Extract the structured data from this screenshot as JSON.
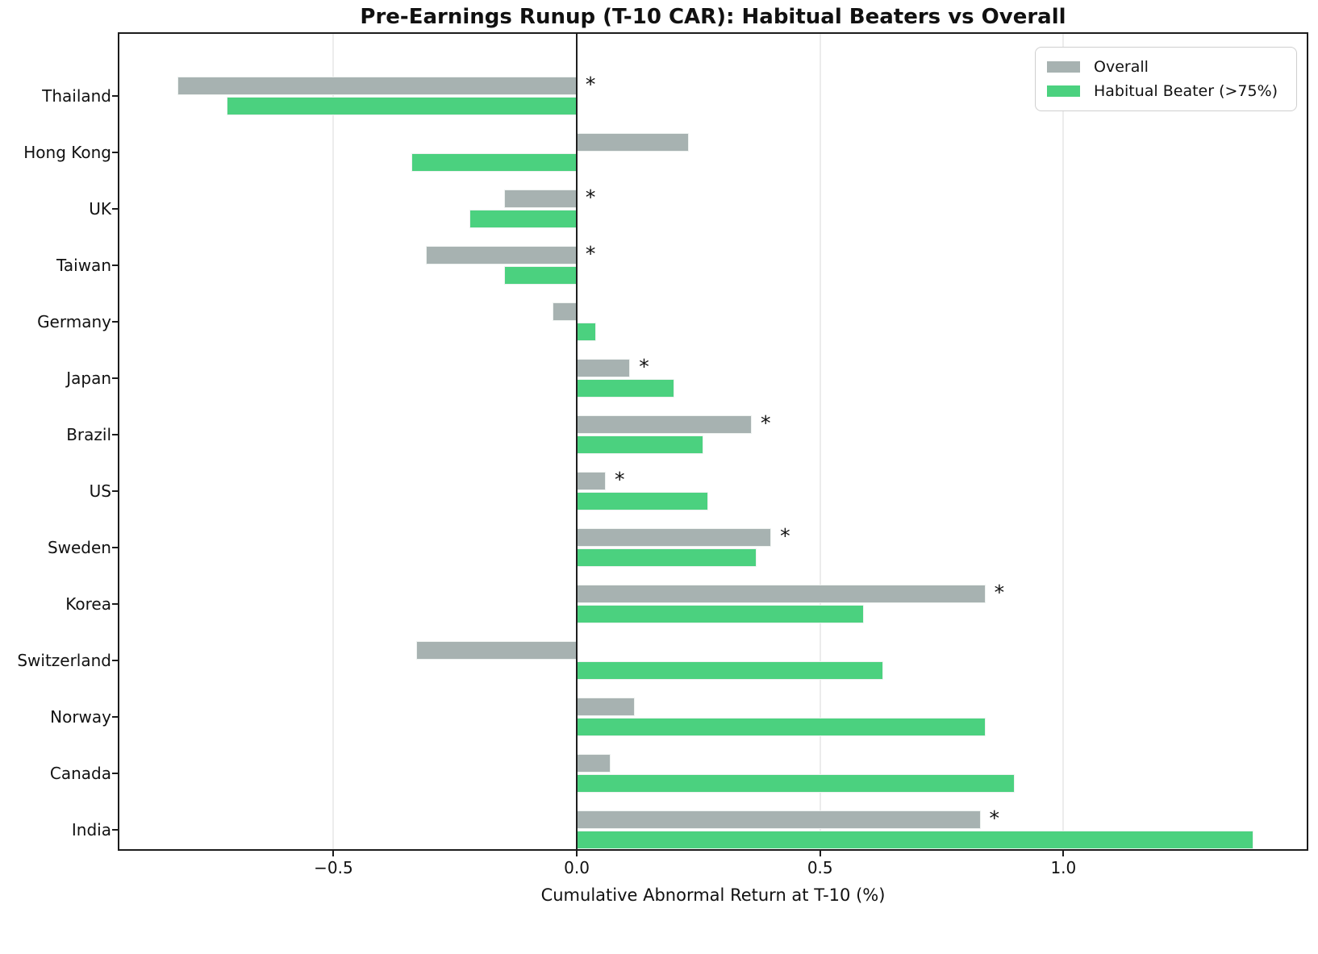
{
  "figure": {
    "title": "Pre-Earnings Runup (T-10 CAR): Habitual Beaters vs Overall",
    "xlabel": "Cumulative Abnormal Return at T-10 (%)"
  },
  "legend": {
    "items": [
      {
        "label": "Overall",
        "color": "#a7b2b1"
      },
      {
        "label": "Habitual Beater (>75%)",
        "color": "#4bd17f"
      }
    ]
  },
  "chart_data": {
    "type": "bar",
    "orientation": "horizontal",
    "title": "Pre-Earnings Runup (T-10 CAR): Habitual Beaters vs Overall",
    "xlabel": "Cumulative Abnormal Return at T-10 (%)",
    "ylabel": "",
    "categories": [
      "Thailand",
      "Hong Kong",
      "UK",
      "Taiwan",
      "Germany",
      "Japan",
      "Brazil",
      "US",
      "Sweden",
      "Korea",
      "Switzerland",
      "Norway",
      "Canada",
      "India"
    ],
    "series": [
      {
        "name": "Overall",
        "color": "#a7b2b1",
        "values": [
          -0.82,
          0.23,
          -0.15,
          -0.31,
          -0.05,
          0.11,
          0.36,
          0.06,
          0.4,
          0.84,
          -0.33,
          0.12,
          0.07,
          0.83
        ]
      },
      {
        "name": "Habitual Beater (>75%)",
        "color": "#4bd17f",
        "values": [
          -0.72,
          -0.34,
          -0.22,
          -0.15,
          0.04,
          0.2,
          0.26,
          0.27,
          0.37,
          0.59,
          0.63,
          0.84,
          0.9,
          1.39
        ]
      }
    ],
    "significant_overall": [
      true,
      false,
      true,
      true,
      false,
      true,
      true,
      true,
      true,
      true,
      false,
      false,
      false,
      true
    ],
    "significance_marker": "*",
    "x_ticks": [
      -0.5,
      0.0,
      0.5,
      1.0
    ],
    "x_tick_labels": [
      "−0.5",
      "0.0",
      "0.5",
      "1.0"
    ],
    "xlim": [
      -0.94,
      1.5
    ],
    "grid": "vertical-gridlines-light",
    "zero_line": true,
    "legend_position": "upper right"
  }
}
